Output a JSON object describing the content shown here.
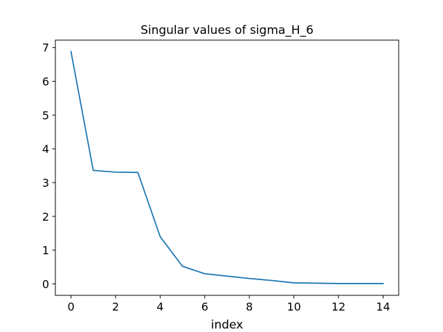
{
  "chart_data": {
    "type": "line",
    "title": "Singular values of sigma_H_6",
    "xlabel": "index",
    "ylabel": "",
    "xlim": [
      -0.7,
      14.7
    ],
    "ylim": [
      -0.34,
      7.22
    ],
    "xticks": [
      0,
      2,
      4,
      6,
      8,
      10,
      12,
      14
    ],
    "xtick_labels": [
      "0",
      "2",
      "4",
      "6",
      "8",
      "10",
      "12",
      "14"
    ],
    "yticks": [
      0,
      1,
      2,
      3,
      4,
      5,
      6,
      7
    ],
    "ytick_labels": [
      "0",
      "1",
      "2",
      "3",
      "4",
      "5",
      "6",
      "7"
    ],
    "grid": false,
    "legend": "none",
    "series": [
      {
        "color": "#1f77b4",
        "x": [
          0,
          1,
          2,
          3,
          4,
          5,
          6,
          7,
          8,
          9,
          10,
          11,
          12,
          13,
          14
        ],
        "values": [
          6.88,
          3.36,
          3.31,
          3.3,
          1.4,
          0.52,
          0.3,
          0.23,
          0.16,
          0.1,
          0.03,
          0.02,
          0.01,
          0.01,
          0.01
        ]
      }
    ]
  }
}
